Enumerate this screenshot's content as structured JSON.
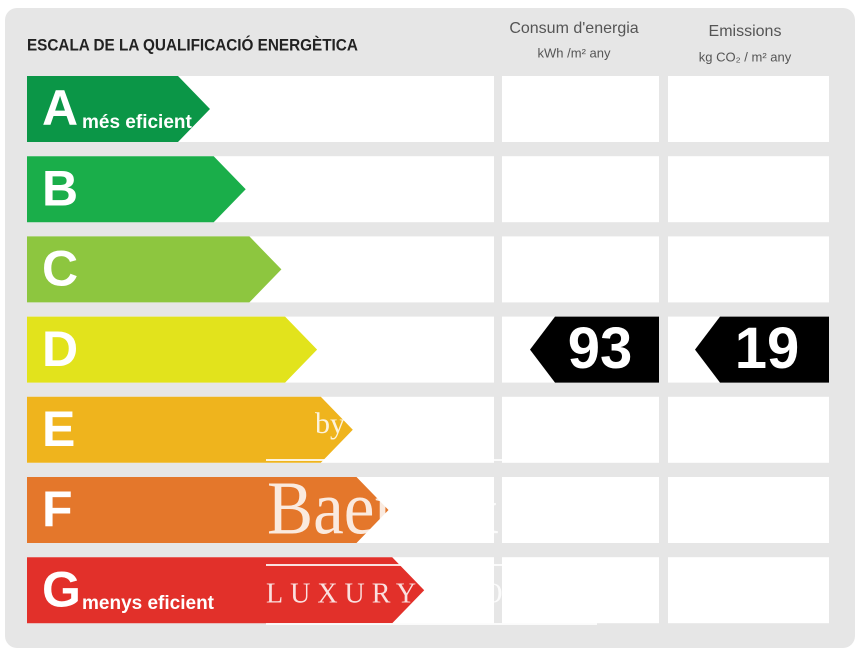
{
  "header": {
    "title": "ESCALA DE LA QUALIFICACIÓ ENERGÈTICA",
    "consumption": {
      "title": "Consum d'energia",
      "unit": "kWh /m² any"
    },
    "emissions": {
      "title": "Emissions",
      "unit": "kg CO₂ / m² any"
    }
  },
  "rows": [
    {
      "letter": "A",
      "label": "més eficient",
      "color": "#0b9647"
    },
    {
      "letter": "B",
      "color": "#1aae4a"
    },
    {
      "letter": "C",
      "color": "#8dc63f"
    },
    {
      "letter": "D",
      "color": "#e2e31c",
      "consumption": 93,
      "emissions": 19
    },
    {
      "letter": "E",
      "color": "#efb41d"
    },
    {
      "letter": "F",
      "color": "#e4772b"
    },
    {
      "letter": "G",
      "label": "menys eficient",
      "color": "#e2302a"
    }
  ],
  "watermark": {
    "by": "by",
    "brand": "Baerz & Co",
    "line1": "LUXURY",
    "line2": "HOMES"
  }
}
